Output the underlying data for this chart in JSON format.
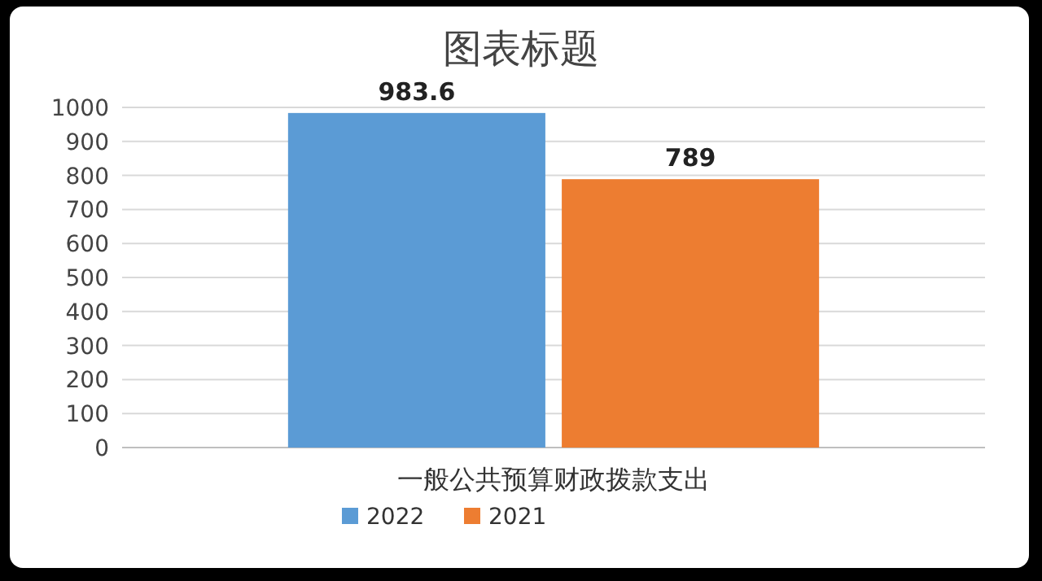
{
  "chart_data": {
    "type": "bar",
    "title": "图表标题",
    "categories": [
      "一般公共预算财政拨款支出"
    ],
    "series": [
      {
        "name": "2022",
        "color": "#5b9bd5",
        "values": [
          983.6
        ]
      },
      {
        "name": "2021",
        "color": "#ed7d31",
        "values": [
          789
        ]
      }
    ],
    "ylim": [
      0,
      1000
    ],
    "yticks": [
      0,
      100,
      200,
      300,
      400,
      500,
      600,
      700,
      800,
      900,
      1000
    ],
    "grid": "y",
    "legend": "bottom",
    "data_labels": true
  }
}
